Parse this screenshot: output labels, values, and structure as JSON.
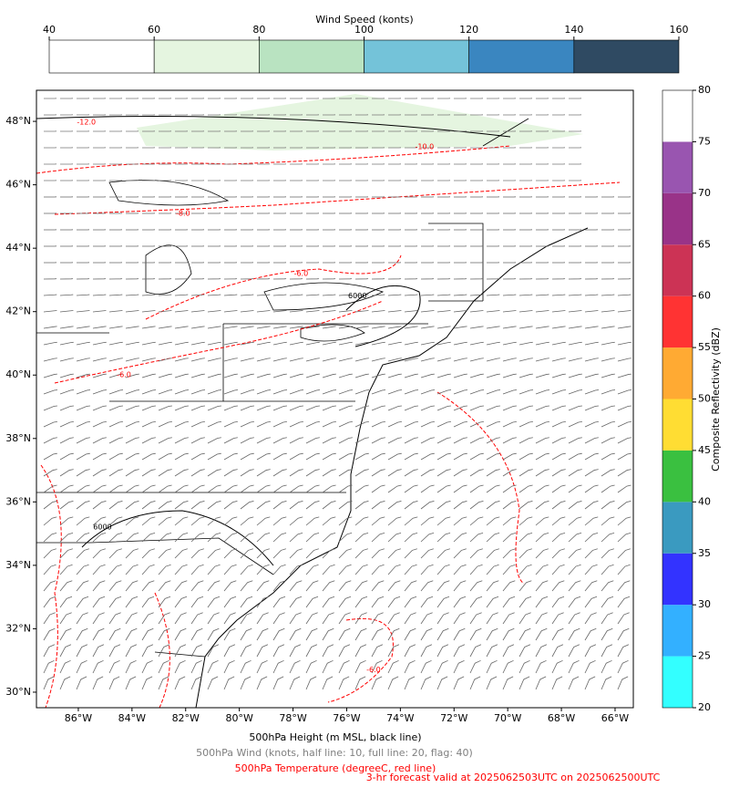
{
  "wind_colorbar": {
    "label": "Wind Speed (konts)",
    "levels": [
      40,
      60,
      80,
      100,
      120,
      140,
      160
    ],
    "colors": [
      "#ffffff",
      "#e5f5e0",
      "#b9e3c1",
      "#74c3d9",
      "#3a86c0",
      "#2f4a62"
    ]
  },
  "reflectivity_colorbar": {
    "label": "Composite Reflectivity (dBZ)",
    "levels": [
      20,
      25,
      30,
      35,
      40,
      45,
      50,
      55,
      60,
      65,
      70,
      75,
      80
    ],
    "colors": [
      "#33ffff",
      "#33b0ff",
      "#3333ff",
      "#3a9ac0",
      "#3ac040",
      "#ffdd33",
      "#ffaa33",
      "#ff3333",
      "#cc3355",
      "#993388",
      "#9955b0",
      "#ffffff"
    ]
  },
  "map": {
    "xlim": [
      -87.56,
      -65.32
    ],
    "ylim": [
      29.51,
      48.98
    ],
    "xticks": [
      {
        "value": -86,
        "label": "86°W"
      },
      {
        "value": -84,
        "label": "84°W"
      },
      {
        "value": -82,
        "label": "82°W"
      },
      {
        "value": -80,
        "label": "80°W"
      },
      {
        "value": -78,
        "label": "78°W"
      },
      {
        "value": -76,
        "label": "76°W"
      },
      {
        "value": -74,
        "label": "74°W"
      },
      {
        "value": -72,
        "label": "72°W"
      },
      {
        "value": -70,
        "label": "70°W"
      },
      {
        "value": -68,
        "label": "68°W"
      },
      {
        "value": -66,
        "label": "66°W"
      }
    ],
    "yticks": [
      {
        "value": 30,
        "label": "30°N"
      },
      {
        "value": 32,
        "label": "32°N"
      },
      {
        "value": 34,
        "label": "34°N"
      },
      {
        "value": 36,
        "label": "36°N"
      },
      {
        "value": 38,
        "label": "38°N"
      },
      {
        "value": 40,
        "label": "40°N"
      },
      {
        "value": 42,
        "label": "42°N"
      },
      {
        "value": 44,
        "label": "44°N"
      },
      {
        "value": 46,
        "label": "46°N"
      },
      {
        "value": 48,
        "label": "48°N"
      }
    ],
    "contour_labels": [
      {
        "text": "-12.0",
        "lon": -85.7,
        "lat": 47.97,
        "color": "red"
      },
      {
        "text": "-10.0",
        "lon": -73.1,
        "lat": 47.2,
        "color": "red"
      },
      {
        "text": "-8.0",
        "lon": -82.1,
        "lat": 45.1,
        "color": "red"
      },
      {
        "text": "-6.0",
        "lon": -77.7,
        "lat": 43.2,
        "color": "red"
      },
      {
        "text": "-6.0",
        "lon": -84.3,
        "lat": 40.0,
        "color": "red"
      },
      {
        "text": "-6.0",
        "lon": -75.0,
        "lat": 30.7,
        "color": "red"
      },
      {
        "text": "6000",
        "lon": -75.6,
        "lat": 42.5,
        "color": "black"
      },
      {
        "text": "6000",
        "lon": -85.1,
        "lat": 35.2,
        "color": "black"
      }
    ]
  },
  "captions": {
    "height": "500hPa Height (m MSL, black line)",
    "wind": "500hPa Wind (knots, half line: 10, full line: 20, flag: 40)",
    "temperature": "500hPa Temperature (degreeC, red line)",
    "forecast": "3-hr forecast valid at 2025062503UTC on 2025062500UTC"
  }
}
